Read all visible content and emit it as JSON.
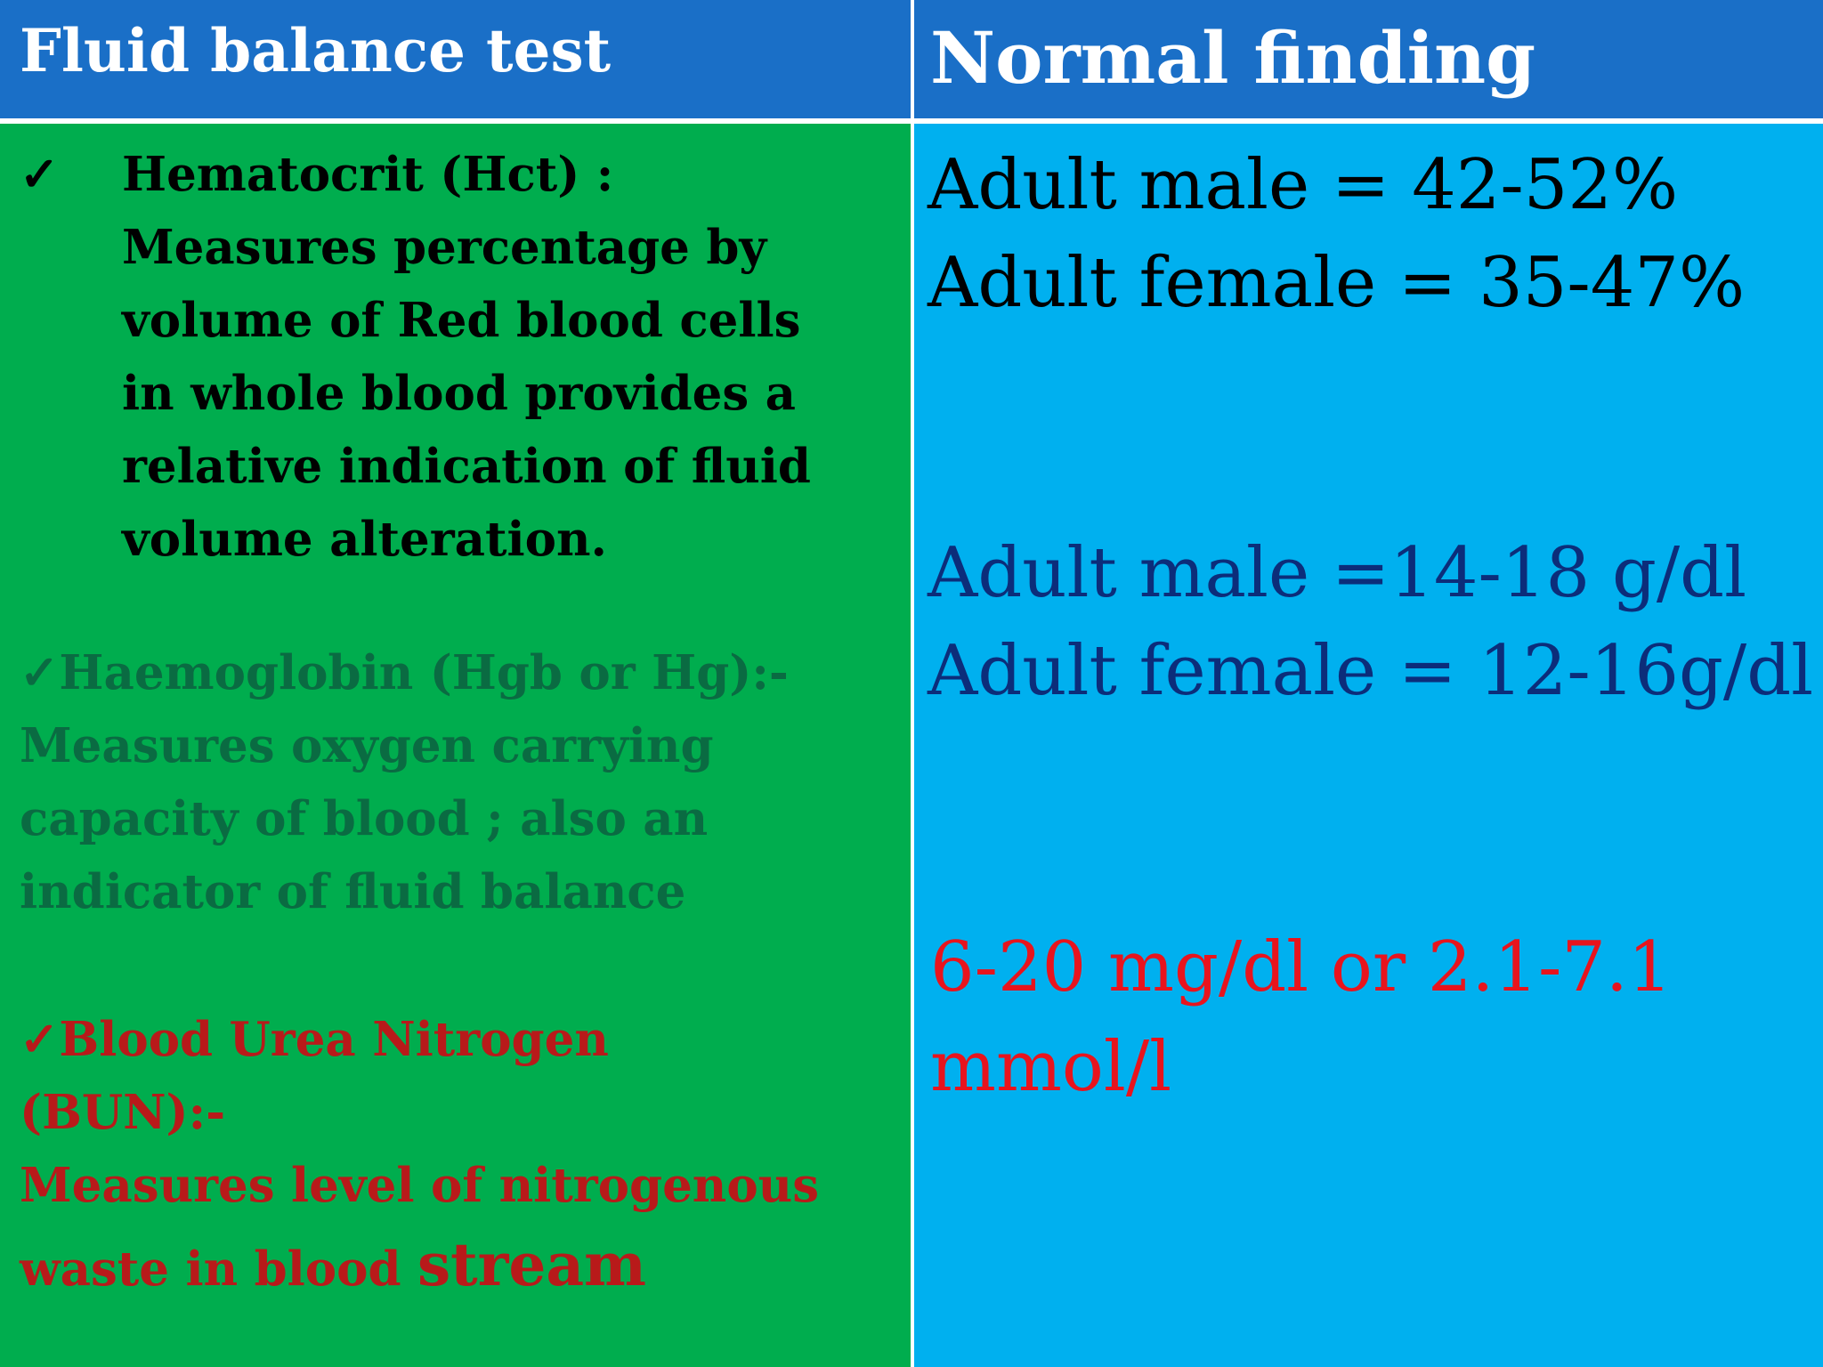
{
  "header": {
    "left_title": "Fluid balance test",
    "right_title": "Normal finding"
  },
  "tests": {
    "hematocrit": {
      "check": "✓",
      "lines": [
        "Hematocrit (Hct) :",
        "Measures percentage by",
        "volume of Red blood cells",
        "in whole blood provides a",
        "relative indication of fluid",
        "volume alteration."
      ]
    },
    "haemoglobin": {
      "lines": [
        "✓Haemoglobin (Hgb or Hg):-",
        "Measures oxygen carrying",
        "capacity of blood ; also an",
        "indicator of fluid balance"
      ]
    },
    "bun": {
      "lines": [
        "✓Blood Urea Nitrogen",
        "(BUN):-",
        "Measures level of nitrogenous"
      ],
      "last_line_start": "waste in blood ",
      "last_line_end": "stream"
    }
  },
  "findings": {
    "hematocrit": [
      "Adult male = 42-52%",
      "Adult female = 35-47%"
    ],
    "haemoglobin": [
      "Adult male =14-18 g/dl",
      "Adult female = 12-16g/dl"
    ],
    "bun": [
      "6-20 mg/dl or 2.1-7.1",
      "mmol/l"
    ]
  },
  "colors": {
    "header": "#1a6fc7",
    "left_body": "#00ad4e",
    "right_body": "#00b0ef",
    "hgb_text": "#0a6b42",
    "bun_text": "#b81a1a",
    "hgb_finding": "#0c2d7a",
    "bun_finding": "#e8141d"
  }
}
